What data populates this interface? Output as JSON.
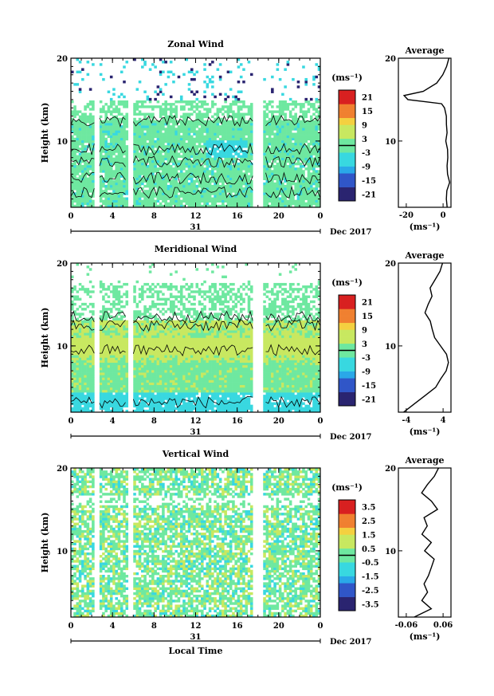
{
  "chart_data": [
    {
      "type": "heatmap",
      "title": "Zonal Wind",
      "ylabel": "Height (km)",
      "yticks": [
        "10",
        "20"
      ],
      "ylim": [
        2,
        20
      ],
      "xticks": [
        "0",
        "4",
        "8",
        "12",
        "16",
        "20",
        "0"
      ],
      "xlim": [
        0,
        24
      ],
      "date_tick": "31",
      "date_label": "Dec 2017",
      "colorbar": {
        "unit": "(ms⁻¹)",
        "ticks": [
          "21",
          "15",
          "9",
          "3",
          "-3",
          "-9",
          "-15",
          "-21"
        ],
        "range": [
          -24,
          24
        ]
      },
      "data_gaps_hours": [
        [
          2.3,
          2.7
        ],
        [
          5.4,
          5.9
        ],
        [
          17.6,
          18.6
        ]
      ],
      "average": {
        "title": "Average",
        "xlabel": "(ms⁻¹)",
        "xticks": [
          "-20",
          "0"
        ],
        "xlim": [
          -25,
          2
        ],
        "height_km": [
          2,
          3,
          4,
          5,
          6,
          7,
          8,
          9,
          10,
          11,
          12,
          13,
          14,
          14.5,
          15,
          15.5,
          16,
          17,
          18,
          19,
          20
        ],
        "value_ms": [
          0,
          0,
          0,
          1,
          0,
          0,
          0,
          0,
          -1,
          0,
          0,
          0,
          -1,
          -3,
          -20,
          -22,
          -12,
          -5,
          -2,
          0,
          1
        ]
      }
    },
    {
      "type": "heatmap",
      "title": "Meridional Wind",
      "ylabel": "Height (km)",
      "yticks": [
        "10",
        "20"
      ],
      "ylim": [
        2,
        20
      ],
      "xticks": [
        "0",
        "4",
        "8",
        "12",
        "16",
        "20",
        "0"
      ],
      "xlim": [
        0,
        24
      ],
      "date_tick": "31",
      "date_label": "Dec 2017",
      "colorbar": {
        "unit": "(ms⁻¹)",
        "ticks": [
          "21",
          "15",
          "9",
          "3",
          "-3",
          "-9",
          "-15",
          "-21"
        ],
        "range": [
          -24,
          24
        ]
      },
      "data_gaps_hours": [
        [
          2.3,
          2.7
        ],
        [
          5.4,
          5.9
        ],
        [
          17.6,
          18.6
        ]
      ],
      "average": {
        "title": "Average",
        "xlabel": "(ms⁻¹)",
        "xticks": [
          "-4",
          "4"
        ],
        "xlim": [
          -5,
          5
        ],
        "height_km": [
          2,
          3,
          4,
          5,
          6,
          7,
          8,
          9,
          10,
          11,
          12,
          13,
          14,
          15,
          16,
          17,
          18,
          19,
          20
        ],
        "value_ms": [
          -4,
          -2,
          0,
          2,
          3,
          4,
          4.5,
          4,
          3,
          2,
          1.5,
          1,
          0,
          0.5,
          1.5,
          1,
          2,
          3,
          3.5
        ]
      }
    },
    {
      "type": "heatmap",
      "title": "Vertical Wind",
      "ylabel": "Height (km)",
      "yticks": [
        "10",
        "20"
      ],
      "ylim": [
        2,
        20
      ],
      "xticks": [
        "0",
        "4",
        "8",
        "12",
        "16",
        "20",
        "0"
      ],
      "xlim": [
        0,
        24
      ],
      "date_tick": "31",
      "date_label": "Dec 2017",
      "xlabel": "Local Time",
      "colorbar": {
        "unit": "(ms⁻¹)",
        "ticks": [
          "3.5",
          "2.5",
          "1.5",
          "0.5",
          "-0.5",
          "-1.5",
          "-2.5",
          "-3.5"
        ],
        "range": [
          -4,
          4
        ]
      },
      "data_gaps_hours": [
        [
          2.3,
          2.7
        ],
        [
          5.4,
          5.9
        ],
        [
          17.6,
          18.6
        ]
      ],
      "average": {
        "title": "Average",
        "xlabel": "(ms⁻¹)",
        "xticks": [
          "-0.06",
          "0.06"
        ],
        "xlim": [
          -0.08,
          0.08
        ],
        "height_km": [
          2,
          3,
          4,
          5,
          6,
          7,
          8,
          9,
          10,
          11,
          12,
          13,
          14,
          15,
          16,
          17,
          18,
          19,
          20
        ],
        "value_ms": [
          -0.03,
          0.02,
          -0.01,
          0.01,
          0,
          0.01,
          0.02,
          0.03,
          0,
          0.02,
          -0.01,
          0.01,
          0,
          0.04,
          0.02,
          -0.01,
          0.01,
          0.03,
          0.04
        ]
      }
    }
  ]
}
